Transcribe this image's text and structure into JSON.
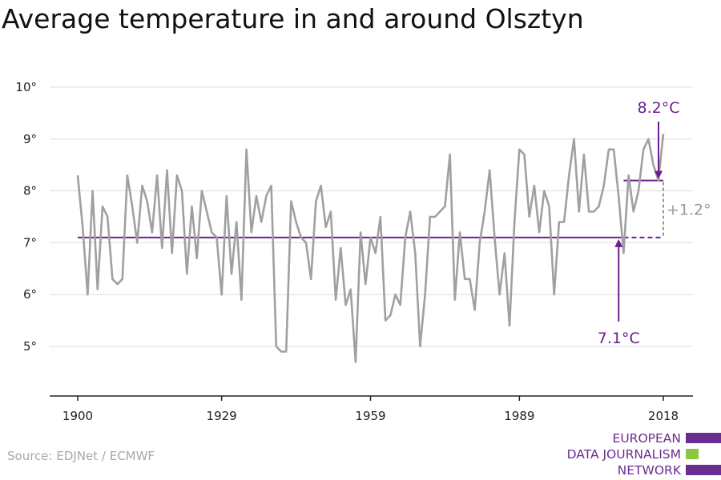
{
  "title": "Average temperature in and around Olsztyn",
  "source": "Source: EDJNet / ECMWF",
  "logo": {
    "lines": [
      "EUROPEAN",
      "DATA JOURNALISM",
      "NETWORK"
    ],
    "colors": {
      "purple": "#6a2c91",
      "green": "#8dc63f"
    }
  },
  "colors": {
    "line": "#a0a0a0",
    "accent": "#6a1f8f",
    "grid": "#dddddd",
    "axis": "#222222",
    "diff": "#999999"
  },
  "chart_data": {
    "type": "line",
    "title": "Average temperature in and around Olsztyn",
    "xlabel": "",
    "ylabel": "",
    "xlim": [
      1900,
      2018
    ],
    "ylim": [
      4,
      10
    ],
    "x_ticks": [
      1900,
      1929,
      1959,
      1989,
      2018
    ],
    "x_tick_labels": [
      "1900",
      "1929",
      "1959",
      "1989",
      "2018"
    ],
    "y_ticks": [
      5,
      6,
      7,
      8,
      9,
      10
    ],
    "y_tick_labels": [
      "5°",
      "6°",
      "7°",
      "8°",
      "9°",
      "10°"
    ],
    "grid": "horizontal",
    "series": [
      {
        "x": [
          1900,
          1901,
          1902,
          1903,
          1904,
          1905,
          1906,
          1907,
          1908,
          1909,
          1910,
          1911,
          1912,
          1913,
          1914,
          1915,
          1916,
          1917,
          1918,
          1919,
          1920,
          1921,
          1922,
          1923,
          1924,
          1925,
          1926,
          1927,
          1928,
          1929,
          1930,
          1931,
          1932,
          1933,
          1934,
          1935,
          1936,
          1937,
          1938,
          1939,
          1940,
          1941,
          1942,
          1943,
          1944,
          1945,
          1946,
          1947,
          1948,
          1949,
          1950,
          1951,
          1952,
          1953,
          1954,
          1955,
          1956,
          1957,
          1958,
          1959,
          1960,
          1961,
          1962,
          1963,
          1964,
          1965,
          1966,
          1967,
          1968,
          1969,
          1970,
          1971,
          1972,
          1973,
          1974,
          1975,
          1976,
          1977,
          1978,
          1979,
          1980,
          1981,
          1982,
          1983,
          1984,
          1985,
          1986,
          1987,
          1988,
          1989,
          1990,
          1991,
          1992,
          1993,
          1994,
          1995,
          1996,
          1997,
          1998,
          1999,
          2000,
          2001,
          2002,
          2003,
          2004,
          2005,
          2006,
          2007,
          2008,
          2009,
          2010,
          2011,
          2012,
          2013,
          2014,
          2015,
          2016,
          2017,
          2018
        ],
        "values": [
          8.3,
          7.3,
          6.0,
          8.0,
          6.1,
          7.7,
          7.5,
          6.3,
          6.2,
          6.3,
          8.3,
          7.7,
          7.0,
          8.1,
          7.8,
          7.2,
          8.3,
          6.9,
          8.4,
          6.8,
          8.3,
          8.0,
          6.4,
          7.7,
          6.7,
          8.0,
          7.6,
          7.2,
          7.1,
          6.0,
          7.9,
          6.4,
          7.4,
          5.9,
          8.8,
          7.2,
          7.9,
          7.4,
          7.9,
          8.1,
          5.0,
          4.9,
          4.9,
          7.8,
          7.4,
          7.1,
          7.0,
          6.3,
          7.8,
          8.1,
          7.3,
          7.6,
          5.9,
          6.9,
          5.8,
          6.1,
          4.7,
          7.2,
          6.2,
          7.1,
          6.8,
          7.5,
          5.5,
          5.6,
          6.0,
          5.8,
          7.1,
          7.6,
          6.8,
          5.0,
          6.0,
          7.5,
          7.5,
          7.6,
          7.7,
          8.7,
          5.9,
          7.2,
          6.3,
          6.3,
          5.7,
          7.0,
          7.6,
          8.4,
          7.1,
          6.0,
          6.8,
          5.4,
          7.4,
          8.8,
          8.7,
          7.5,
          8.1,
          7.2,
          8.0,
          7.7,
          6.0,
          7.4,
          7.4,
          8.3,
          9.0,
          7.6,
          8.7,
          7.6,
          7.6,
          7.7,
          8.1,
          8.8,
          8.8,
          7.9,
          6.8,
          8.3,
          7.6,
          8.0,
          8.8,
          9.0,
          8.5,
          8.2,
          9.1
        ]
      }
    ],
    "baseline": {
      "value": 7.1,
      "from": 1900,
      "to": 2018,
      "label": "7.1°C"
    },
    "recent_average": {
      "value": 8.2,
      "from": 2010,
      "to": 2018,
      "label": "8.2°C"
    },
    "difference": {
      "label": "+1.2°"
    }
  }
}
